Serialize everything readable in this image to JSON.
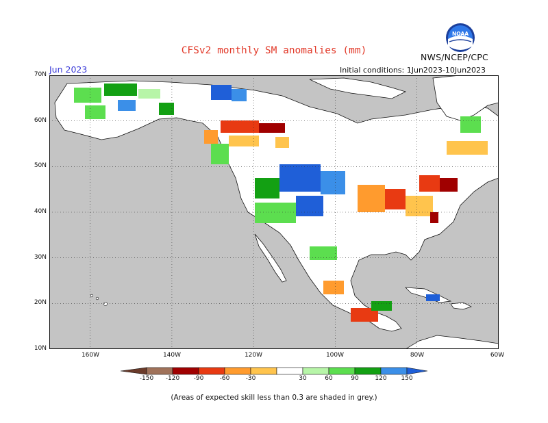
{
  "header": {
    "title": "CFSv2 monthly SM anomalies (mm)",
    "org": "NWS/NCEP/CPC",
    "logo_text": "NOAA",
    "month": "Jun 2023",
    "initial_conditions": "Initial conditions: 1Jun2023-10Jun2023"
  },
  "map": {
    "lat_labels": [
      "70N",
      "60N",
      "50N",
      "40N",
      "30N",
      "20N",
      "10N"
    ],
    "lon_labels": [
      "160W",
      "140W",
      "120W",
      "100W",
      "80W",
      "60W"
    ],
    "background_color": "#c4c4c4",
    "ocean_color": "#c4c4c4",
    "land_low_skill_color": "#ffffff"
  },
  "colorbar": {
    "tick_labels": [
      "-150",
      "-120",
      "-90",
      "-60",
      "-30",
      "30",
      "60",
      "90",
      "120",
      "150"
    ],
    "colors": [
      "#6b3b2a",
      "#a0725a",
      "#a00000",
      "#e83a12",
      "#ff9b2e",
      "#ffc44d",
      "#ffffff",
      "#b7f5a8",
      "#5cde4f",
      "#13a013",
      "#3b8fe8",
      "#1f5fd8"
    ]
  },
  "footnote": "(Areas of expected skill less than 0.3 are shaded in grey.)",
  "colors": {
    "title": "#e23a2a",
    "month": "#3a3ad8",
    "grid": "#333333"
  }
}
